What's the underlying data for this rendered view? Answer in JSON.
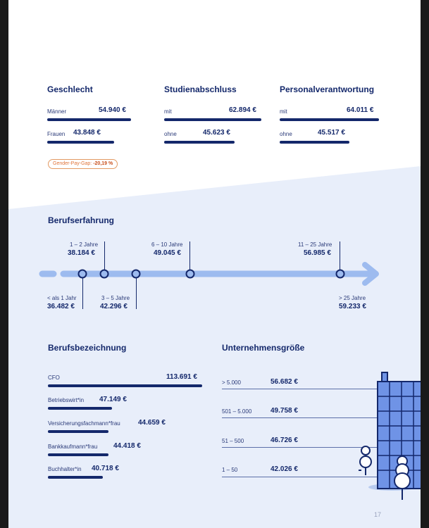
{
  "gender": {
    "title": "Geschlecht",
    "rows": [
      {
        "label": "Männer",
        "value": "54.940 €"
      },
      {
        "label": "Frauen",
        "value": "43.848 €"
      }
    ],
    "gap_label": "Gender-Pay-Gap:",
    "gap_value": "-20,19 %"
  },
  "degree": {
    "title": "Studienabschluss",
    "rows": [
      {
        "label": "mit",
        "value": "62.894 €"
      },
      {
        "label": "ohne",
        "value": "45.623 €"
      }
    ]
  },
  "leadership": {
    "title": "Personalverantwortung",
    "rows": [
      {
        "label": "mit",
        "value": "64.011 €"
      },
      {
        "label": "ohne",
        "value": "45.517 €"
      }
    ]
  },
  "experience": {
    "title": "Berufserfahrung",
    "stops": [
      {
        "label": "< als 1 Jahr",
        "value": "36.482 €"
      },
      {
        "label": "1 – 2 Jahre",
        "value": "38.184 €"
      },
      {
        "label": "3 – 5 Jahre",
        "value": "42.296 €"
      },
      {
        "label": "6 – 10 Jahre",
        "value": "49.045 €"
      },
      {
        "label": "11 – 25 Jahre",
        "value": "56.985 €"
      },
      {
        "label": "> 25 Jahre",
        "value": "59.233 €"
      }
    ]
  },
  "jobs": {
    "title": "Berufsbezeichnung",
    "rows": [
      {
        "label": "CFO",
        "value": "113.691 €"
      },
      {
        "label": "Betriebswirt*in",
        "value": "47.149 €"
      },
      {
        "label": "Versicherungsfachmann*frau",
        "value": "44.659 €"
      },
      {
        "label": "Bankkaufmann*frau",
        "value": "44.418 €"
      },
      {
        "label": "Buchhalter*in",
        "value": "40.718 €"
      }
    ]
  },
  "company_size": {
    "title": "Unternehmensgröße",
    "rows": [
      {
        "label": "> 5.000",
        "value": "56.682 €"
      },
      {
        "label": "501 – 5.000",
        "value": "49.758 €"
      },
      {
        "label": "51 – 500",
        "value": "46.726 €"
      },
      {
        "label": "1 – 50",
        "value": "42.026 €"
      }
    ]
  },
  "page_number": "17",
  "colors": {
    "navy": "#14286b",
    "light_blue": "#e8eefa",
    "timeline_blue": "#9dbbef",
    "accent_orange": "#e0753a"
  }
}
